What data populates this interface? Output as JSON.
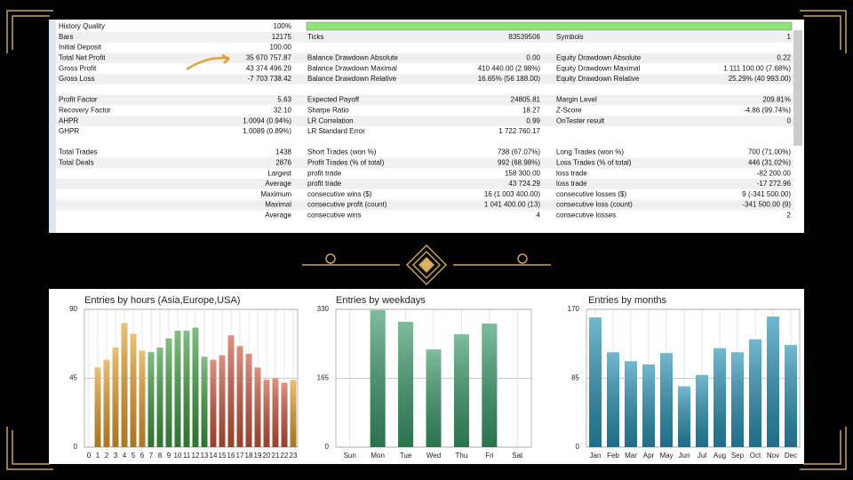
{
  "report": {
    "history_label": "History Quality",
    "history_value": "100%",
    "groups": [
      [
        {
          "c1l": "Bars",
          "c1v": "12175",
          "c2l": "Ticks",
          "c2v": "83539506",
          "c3l": "Symbols",
          "c3v": "1"
        },
        {
          "c1l": "Initial Deposit",
          "c1v": "100.00"
        },
        {
          "c1l": "Total Net Profit",
          "c1v": "35 670 757.87",
          "c2l": "Balance Drawdown Absolute",
          "c2v": "0.00",
          "c3l": "Equity Drawdown Absolute",
          "c3v": "0.22"
        },
        {
          "c1l": "Gross Profit",
          "c1v": "43 374 496.29",
          "c2l": "Balance Drawdown Maximal",
          "c2v": "410 440.00 (2.98%)",
          "c3l": "Equity Drawdown Maximal",
          "c3v": "1 111 100.00 (7.68%)"
        },
        {
          "c1l": "Gross Loss",
          "c1v": "-7 703 738.42",
          "c2l": "Balance Drawdown Relative",
          "c2v": "16.65% (56 188.00)",
          "c3l": "Equity Drawdown Relative",
          "c3v": "25.29% (40 993.00)"
        }
      ],
      [
        {
          "c1l": "Profit Factor",
          "c1v": "5.63",
          "c2l": "Expected Payoff",
          "c2v": "24805.81",
          "c3l": "Margin Level",
          "c3v": "209.81%"
        },
        {
          "c1l": "Recovery Factor",
          "c1v": "32.10",
          "c2l": "Sharpe Ratio",
          "c2v": "18.27",
          "c3l": "Z-Score",
          "c3v": "-4.86 (99.74%)"
        },
        {
          "c1l": "AHPR",
          "c1v": "1.0094 (0.94%)",
          "c2l": "LR Correlation",
          "c2v": "0.99",
          "c3l": "OnTester result",
          "c3v": "0"
        },
        {
          "c1l": "GHPR",
          "c1v": "1.0089 (0.89%)",
          "c2l": "LR Standard Error",
          "c2v": "1 722 760.17"
        }
      ],
      [
        {
          "c1l": "Total Trades",
          "c1v": "1438",
          "c2l": "Short Trades (won %)",
          "c2v": "738 (67.07%)",
          "c3l": "Long Trades (won %)",
          "c3v": "700 (71.00%)"
        },
        {
          "c1l": "Total Deals",
          "c1v": "2876",
          "c2l": "Profit Trades (% of total)",
          "c2v": "992 (68.98%)",
          "c3l": "Loss Trades (% of total)",
          "c3v": "446 (31.02%)"
        },
        {
          "c1v": "Largest",
          "c2l": "profit trade",
          "c2v": "158 300.00",
          "c3l": "loss trade",
          "c3v": "-82 200.00"
        },
        {
          "c1v": "Average",
          "c2l": "profit trade",
          "c2v": "43 724.29",
          "c3l": "loss trade",
          "c3v": "-17 272.96"
        },
        {
          "c1v": "Maximum",
          "c2l": "consecutive wins ($)",
          "c2v": "16 (1 003 400.00)",
          "c3l": "consecutive losses ($)",
          "c3v": "9 (-341 500.00)"
        },
        {
          "c1v": "Maximal",
          "c2l": "consecutive profit (count)",
          "c2v": "1 041 400.00 (13)",
          "c3l": "consecutive loss (count)",
          "c3v": "-341 500.00 (9)"
        },
        {
          "c1v": "Average",
          "c2l": "consecutive wins",
          "c2v": "4",
          "c3l": "consecutive losses",
          "c3v": "2"
        }
      ]
    ]
  },
  "chart_data": [
    {
      "type": "bar",
      "title": "Entries by hours (Asia,Europe,USA)",
      "categories": [
        "0",
        "1",
        "2",
        "3",
        "4",
        "5",
        "6",
        "7",
        "8",
        "9",
        "10",
        "11",
        "12",
        "13",
        "14",
        "15",
        "16",
        "17",
        "18",
        "19",
        "20",
        "21",
        "22",
        "23"
      ],
      "values": [
        0,
        52,
        57,
        65,
        81,
        74,
        63,
        62,
        65,
        71,
        76,
        76,
        78,
        59,
        57,
        60,
        73,
        66,
        61,
        52,
        44,
        45,
        42,
        44
      ],
      "colors": [
        "#e0a030",
        "#e0a030",
        "#e0a030",
        "#e0a030",
        "#e0a030",
        "#e0a030",
        "#e0a030",
        "#3f9a40",
        "#3f9a40",
        "#3f9a40",
        "#3f9a40",
        "#3f9a40",
        "#3f9a40",
        "#3f9a40",
        "#c9563f",
        "#c9563f",
        "#c9563f",
        "#c9563f",
        "#c9563f",
        "#c9563f",
        "#c9563f",
        "#c9563f",
        "#c9563f",
        "#e0a030"
      ],
      "ylim": [
        0,
        90
      ],
      "yticks": [
        0,
        45,
        90
      ],
      "grid": true
    },
    {
      "type": "bar",
      "title": "Entries by weekdays",
      "categories": [
        "Sun",
        "Mon",
        "Tue",
        "Wed",
        "Thu",
        "Fri",
        "Sat"
      ],
      "values": [
        0,
        328,
        300,
        234,
        270,
        296,
        0
      ],
      "color": "#3a9a68",
      "ylim": [
        0,
        330
      ],
      "yticks": [
        0,
        165,
        330
      ],
      "grid": true
    },
    {
      "type": "bar",
      "title": "Entries by months",
      "categories": [
        "Jan",
        "Feb",
        "Mar",
        "Apr",
        "May",
        "Jun",
        "Jul",
        "Aug",
        "Sep",
        "Oct",
        "Nov",
        "Dec"
      ],
      "values": [
        160,
        117,
        106,
        102,
        116,
        75,
        89,
        122,
        117,
        133,
        161,
        126
      ],
      "color": "#2a92b4",
      "ylim": [
        0,
        170
      ],
      "yticks": [
        0,
        85,
        170
      ],
      "grid": true
    }
  ]
}
